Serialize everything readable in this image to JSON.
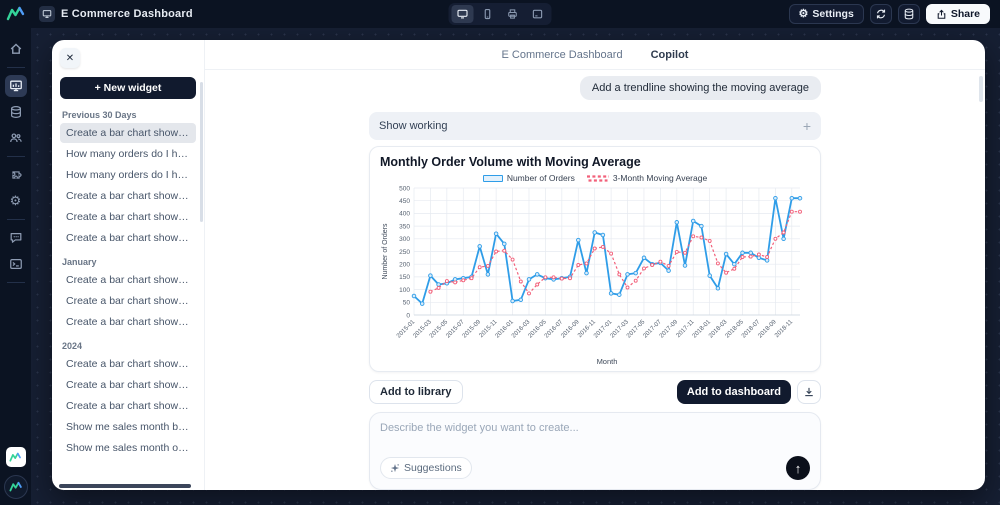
{
  "topbar": {
    "app_title": "E Commerce Dashboard",
    "settings_label": "Settings",
    "share_label": "Share"
  },
  "icons": {
    "gear": "⚙",
    "close": "✕",
    "plus": "+",
    "send_arrow": "↑"
  },
  "colors": {
    "dark_navy": "#0b1322",
    "backdrop": "#161f33",
    "accent_blue": "#2f9de8",
    "accent_pink": "#f2607a",
    "logo_green": "#34d399",
    "logo_blue": "#4f9cf7"
  },
  "tabs": {
    "dashboard_label": "E Commerce Dashboard",
    "copilot_label": "Copilot"
  },
  "history": {
    "new_widget_label": "+ New widget",
    "sections": [
      {
        "title": "Previous 30 Days",
        "items": [
          {
            "label": "Create a bar chart showing my ...",
            "selected": true
          },
          {
            "label": "How many orders do I have in t...",
            "selected": false
          },
          {
            "label": "How many orders do I have in t...",
            "selected": false
          },
          {
            "label": "Create a bar chart showing my ...",
            "selected": false
          },
          {
            "label": "Create a bar chart showing the ...",
            "selected": false
          },
          {
            "label": "Create a bar chart showing the ...",
            "selected": false
          }
        ]
      },
      {
        "title": "January",
        "items": [
          {
            "label": "Create a bar chart showing my ...",
            "selected": false
          },
          {
            "label": "Create a bar chart showing my ...",
            "selected": false
          },
          {
            "label": "Create a bar chart showing the ...",
            "selected": false
          }
        ]
      },
      {
        "title": "2024",
        "items": [
          {
            "label": "Create a bar chart showing my ...",
            "selected": false
          },
          {
            "label": "Create a bar chart showing my ...",
            "selected": false
          },
          {
            "label": "Create a bar chart showing my ...",
            "selected": false
          },
          {
            "label": "Show me sales month by mont...",
            "selected": false
          },
          {
            "label": "Show me sales month over mo...",
            "selected": false
          }
        ]
      }
    ]
  },
  "chat": {
    "user_message": "Add a trendline showing the moving average",
    "show_working_label": "Show working"
  },
  "actions": {
    "add_to_library": "Add to library",
    "add_to_dashboard": "Add to dashboard"
  },
  "composer": {
    "placeholder": "Describe the widget you want to create...",
    "suggestions_label": "Suggestions"
  },
  "chart_data": {
    "type": "line",
    "title": "Monthly Order Volume with Moving Average",
    "xlabel": "Month",
    "ylabel": "Number of Orders",
    "ylim": [
      0,
      500
    ],
    "ytick_step": 50,
    "xtick_every": 2,
    "grid": true,
    "legend_position": "top-center",
    "x": [
      "2015-01",
      "2015-02",
      "2015-03",
      "2015-04",
      "2015-05",
      "2015-06",
      "2015-07",
      "2015-08",
      "2015-09",
      "2015-10",
      "2015-11",
      "2015-12",
      "2016-01",
      "2016-02",
      "2016-03",
      "2016-04",
      "2016-05",
      "2016-06",
      "2016-07",
      "2016-08",
      "2016-09",
      "2016-10",
      "2016-11",
      "2016-12",
      "2017-01",
      "2017-02",
      "2017-03",
      "2017-04",
      "2017-05",
      "2017-06",
      "2017-07",
      "2017-08",
      "2017-09",
      "2017-10",
      "2017-11",
      "2017-12",
      "2018-01",
      "2018-02",
      "2018-03",
      "2018-04",
      "2018-05",
      "2018-06",
      "2018-07",
      "2018-08",
      "2018-09",
      "2018-10",
      "2018-11",
      "2018-12"
    ],
    "series": [
      {
        "name": "Number of Orders",
        "color": "#2f9de8",
        "width": 1.8,
        "dash": null,
        "marker_r": 1.8,
        "marker_fill": "#d9ecfa",
        "values": [
          75,
          45,
          155,
          120,
          125,
          140,
          145,
          150,
          270,
          160,
          320,
          280,
          55,
          60,
          140,
          160,
          145,
          140,
          145,
          150,
          295,
          165,
          325,
          315,
          85,
          80,
          160,
          165,
          225,
          200,
          205,
          175,
          365,
          195,
          370,
          350,
          155,
          105,
          240,
          200,
          245,
          245,
          225,
          215,
          460,
          300,
          460,
          460
        ]
      },
      {
        "name": "3-Month Moving Average",
        "color": "#f2607a",
        "width": 1.2,
        "dash": "2.5 2.2",
        "marker_r": 1.5,
        "marker_fill": "#ffffff",
        "values": [
          null,
          null,
          91.7,
          106.7,
          133.3,
          128.3,
          136.7,
          145,
          188.3,
          193.3,
          250,
          253.3,
          218.3,
          131.7,
          85,
          120,
          148.3,
          148.3,
          143.3,
          145,
          196.7,
          203.3,
          261.7,
          268.3,
          241.7,
          160,
          108.3,
          135,
          183.3,
          196.7,
          210,
          193.3,
          248.3,
          245,
          310,
          305,
          291.7,
          203.3,
          166.7,
          181.7,
          228.3,
          230,
          238.3,
          228.3,
          300,
          325,
          406.7,
          406.7
        ]
      }
    ]
  }
}
